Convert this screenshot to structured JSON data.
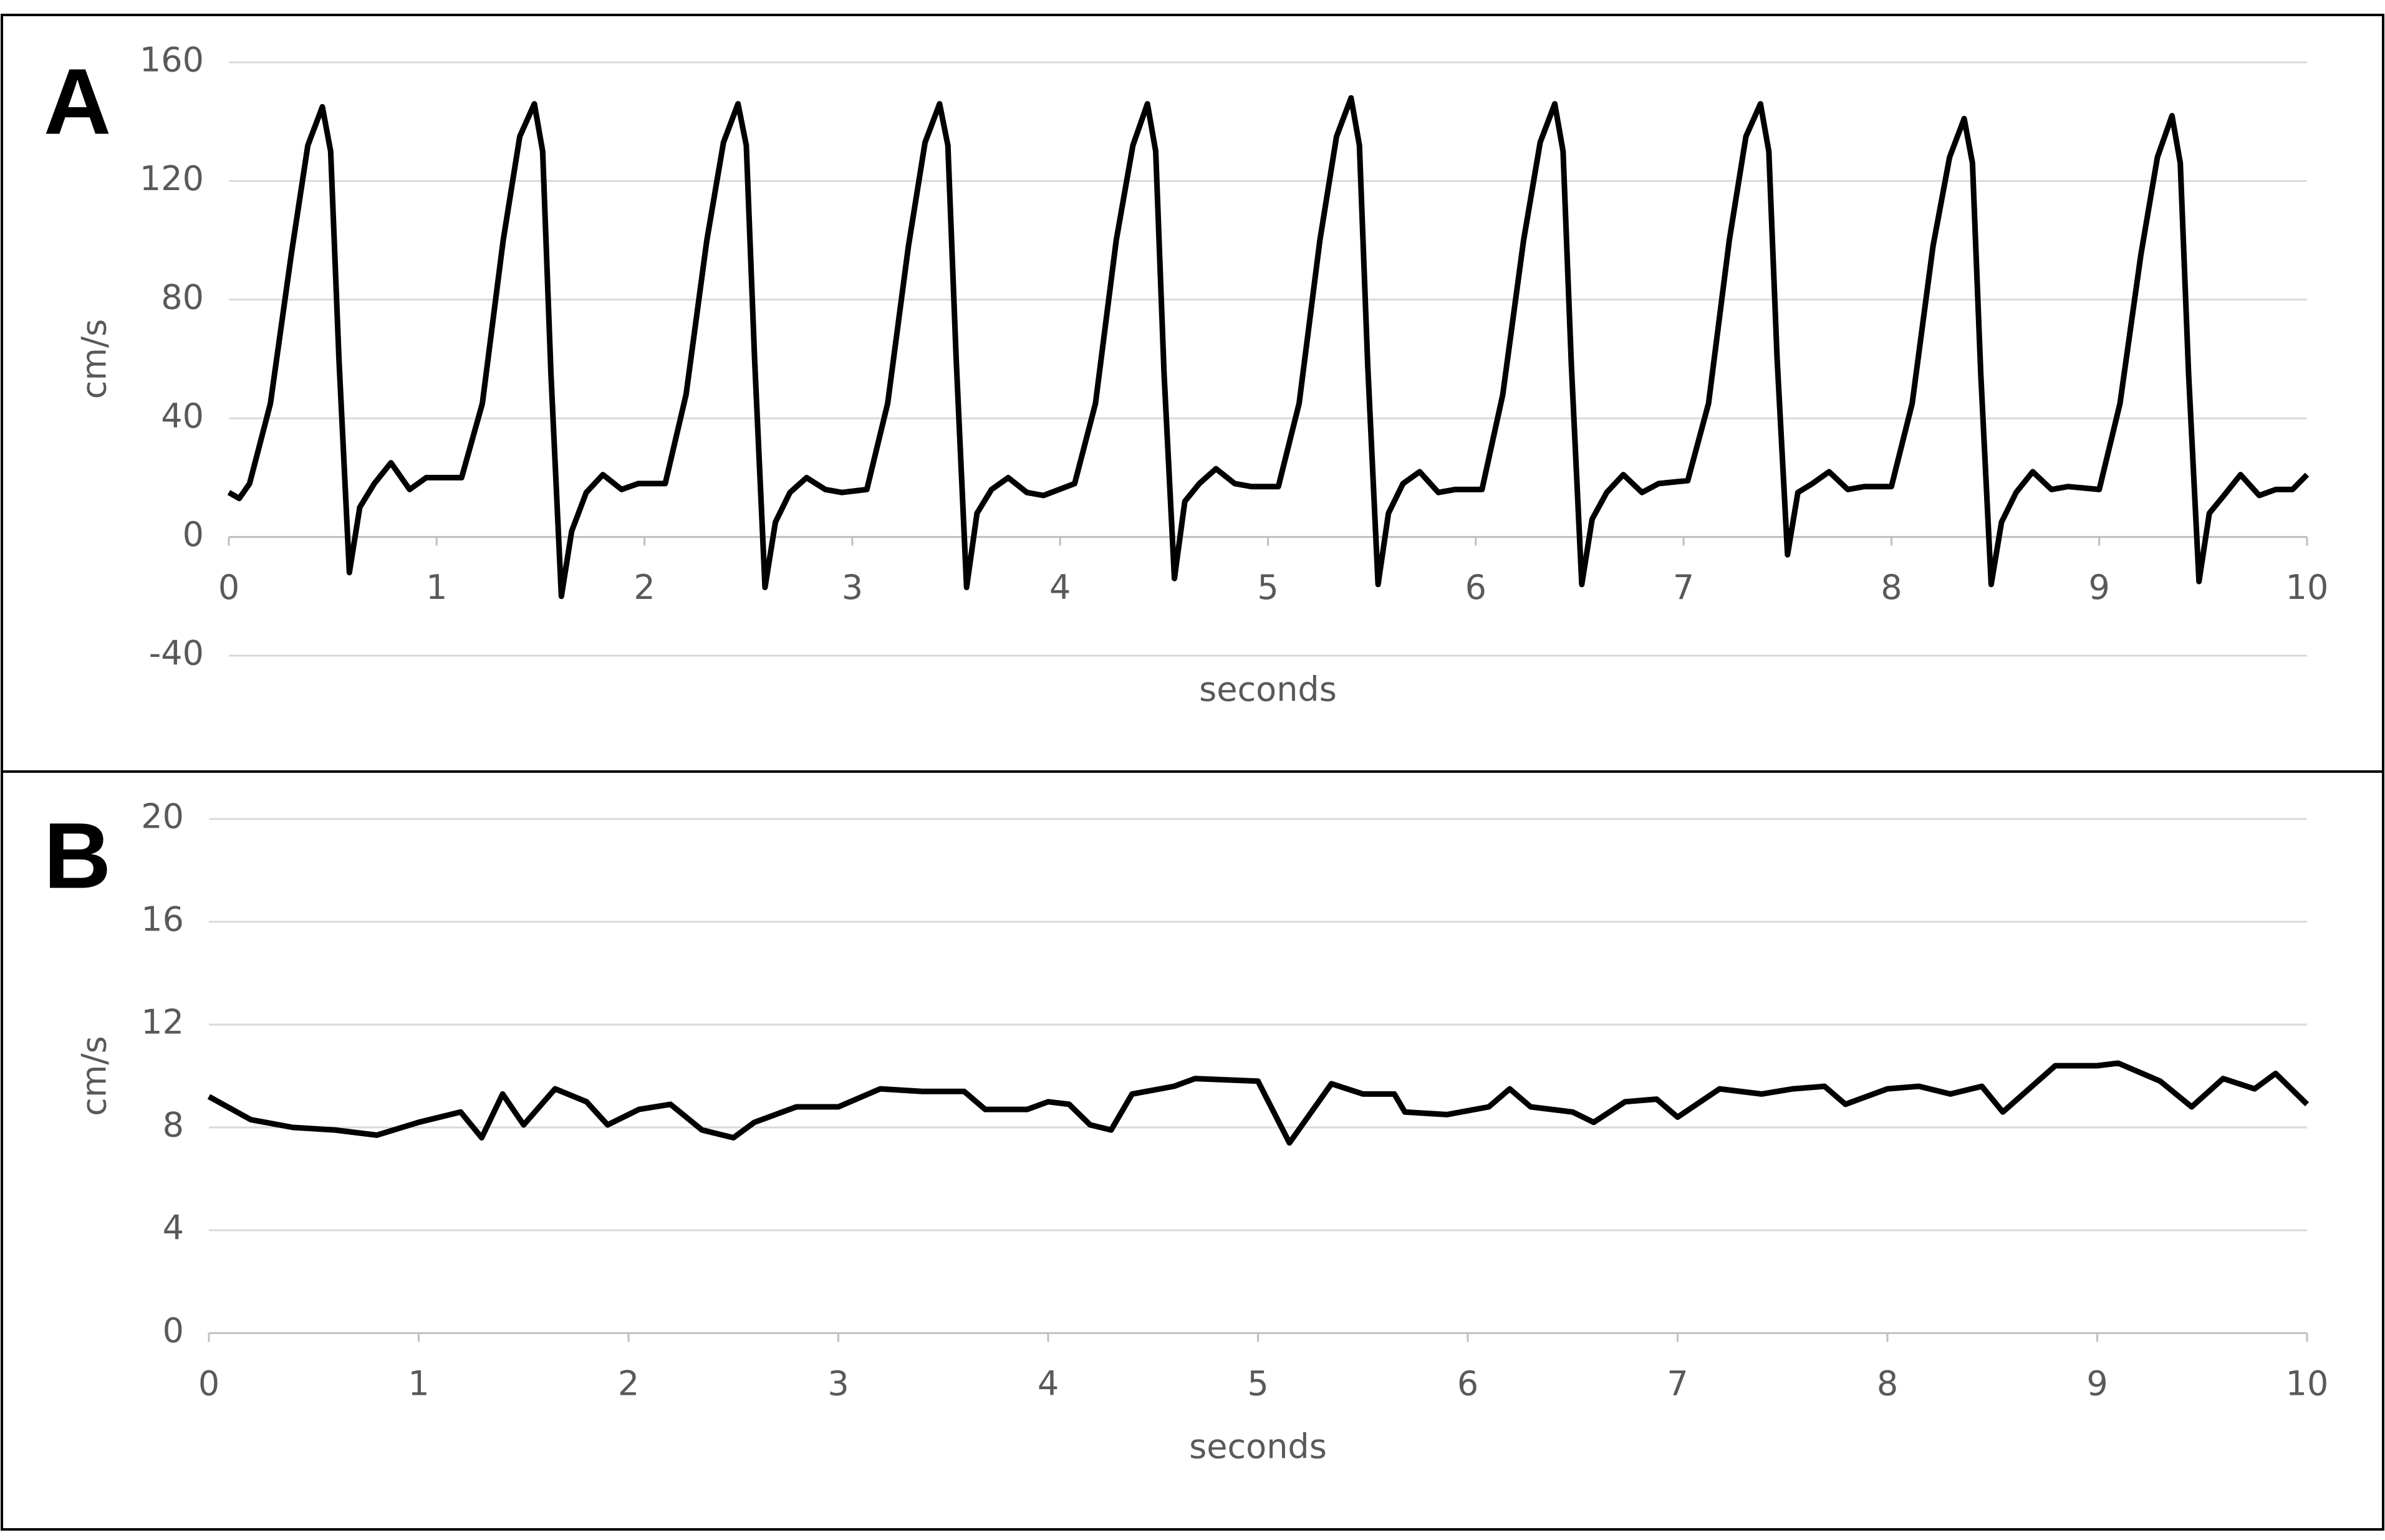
{
  "chart_data": [
    {
      "type": "line",
      "panel_label": "A",
      "y_label": "cm/s",
      "x_label": "seconds",
      "xlim": [
        0,
        10
      ],
      "ylim": [
        -40,
        160
      ],
      "xticks": [
        0,
        1,
        2,
        3,
        4,
        5,
        6,
        7,
        8,
        9,
        10
      ],
      "yticks": [
        -40,
        0,
        40,
        80,
        120,
        160
      ],
      "grid": true,
      "series": [
        {
          "color": "#000000",
          "x": [
            0,
            0.05,
            0.1,
            0.2,
            0.3,
            0.38,
            0.45,
            0.49,
            0.53,
            0.58,
            0.63,
            0.7,
            0.78,
            0.87,
            0.95,
            1.12,
            1.22,
            1.32,
            1.4,
            1.47,
            1.51,
            1.55,
            1.6,
            1.65,
            1.72,
            1.8,
            1.89,
            1.97,
            2.1,
            2.2,
            2.3,
            2.38,
            2.45,
            2.49,
            2.53,
            2.58,
            2.63,
            2.7,
            2.78,
            2.87,
            2.95,
            3.07,
            3.17,
            3.27,
            3.35,
            3.42,
            3.46,
            3.5,
            3.55,
            3.6,
            3.67,
            3.75,
            3.84,
            3.92,
            4.07,
            4.17,
            4.27,
            4.35,
            4.42,
            4.46,
            4.5,
            4.55,
            4.6,
            4.67,
            4.75,
            4.84,
            4.92,
            5.05,
            5.15,
            5.25,
            5.33,
            5.4,
            5.44,
            5.48,
            5.53,
            5.58,
            5.65,
            5.73,
            5.82,
            5.9,
            6.03,
            6.13,
            6.23,
            6.31,
            6.38,
            6.42,
            6.46,
            6.51,
            6.56,
            6.63,
            6.71,
            6.8,
            6.88,
            7.02,
            7.12,
            7.22,
            7.3,
            7.37,
            7.41,
            7.45,
            7.5,
            7.55,
            7.62,
            7.7,
            7.79,
            7.87,
            8.0,
            8.1,
            8.2,
            8.28,
            8.35,
            8.39,
            8.43,
            8.48,
            8.53,
            8.6,
            8.68,
            8.77,
            8.85,
            9.0,
            9.1,
            9.2,
            9.28,
            9.35,
            9.39,
            9.43,
            9.48,
            9.53,
            9.6,
            9.68,
            9.77,
            9.85,
            9.93,
            10
          ],
          "values": [
            15,
            13,
            18,
            45,
            95,
            132,
            145,
            130,
            60,
            -12,
            10,
            18,
            25,
            16,
            20,
            20,
            45,
            100,
            135,
            146,
            130,
            55,
            -20,
            2,
            15,
            21,
            16,
            18,
            18,
            48,
            100,
            133,
            146,
            132,
            60,
            -17,
            5,
            15,
            20,
            16,
            15,
            16,
            45,
            98,
            133,
            146,
            132,
            60,
            -17,
            8,
            16,
            20,
            15,
            14,
            18,
            45,
            100,
            132,
            146,
            130,
            55,
            -14,
            12,
            18,
            23,
            18,
            17,
            17,
            45,
            100,
            135,
            148,
            132,
            58,
            -16,
            8,
            18,
            22,
            15,
            16,
            16,
            48,
            100,
            133,
            146,
            130,
            58,
            -16,
            6,
            15,
            21,
            15,
            18,
            19,
            45,
            100,
            135,
            146,
            130,
            60,
            -6,
            15,
            18,
            22,
            16,
            17,
            17,
            45,
            98,
            128,
            141,
            126,
            55,
            -16,
            5,
            15,
            22,
            16,
            17,
            16,
            45,
            95,
            128,
            142,
            126,
            55,
            -15,
            8,
            14,
            21,
            14,
            16,
            16,
            21
          ]
        }
      ]
    },
    {
      "type": "line",
      "panel_label": "B",
      "y_label": "cm/s",
      "x_label": "seconds",
      "xlim": [
        0,
        10
      ],
      "ylim": [
        0,
        20
      ],
      "xticks": [
        0,
        1,
        2,
        3,
        4,
        5,
        6,
        7,
        8,
        9,
        10
      ],
      "yticks": [
        0,
        4,
        8,
        12,
        16,
        20
      ],
      "grid": true,
      "series": [
        {
          "color": "#000000",
          "x": [
            0,
            0.2,
            0.4,
            0.6,
            0.8,
            1.0,
            1.2,
            1.3,
            1.4,
            1.5,
            1.65,
            1.8,
            1.9,
            2.05,
            2.2,
            2.35,
            2.5,
            2.6,
            2.8,
            3.0,
            3.2,
            3.4,
            3.6,
            3.7,
            3.9,
            4.0,
            4.1,
            4.2,
            4.3,
            4.4,
            4.6,
            4.7,
            5.0,
            5.15,
            5.35,
            5.5,
            5.65,
            5.7,
            5.9,
            6.1,
            6.2,
            6.3,
            6.5,
            6.6,
            6.75,
            6.9,
            7.0,
            7.2,
            7.4,
            7.55,
            7.7,
            7.8,
            8.0,
            8.15,
            8.3,
            8.45,
            8.55,
            8.8,
            9.0,
            9.1,
            9.3,
            9.45,
            9.6,
            9.75,
            9.85,
            10.0
          ],
          "values": [
            9.2,
            8.3,
            8.0,
            7.9,
            7.7,
            8.2,
            8.6,
            7.6,
            9.3,
            8.1,
            9.5,
            9.0,
            8.1,
            8.7,
            8.9,
            7.9,
            7.6,
            8.2,
            8.8,
            8.8,
            9.5,
            9.4,
            9.4,
            8.7,
            8.7,
            9.0,
            8.9,
            8.1,
            7.9,
            9.3,
            9.6,
            9.9,
            9.8,
            7.4,
            9.7,
            9.3,
            9.3,
            8.6,
            8.5,
            8.8,
            9.5,
            8.8,
            8.6,
            8.2,
            9.0,
            9.1,
            8.4,
            9.5,
            9.3,
            9.5,
            9.6,
            8.9,
            9.5,
            9.6,
            9.3,
            9.6,
            8.6,
            10.4,
            10.4,
            10.5,
            9.8,
            8.8,
            9.9,
            9.5,
            10.1,
            8.9
          ]
        }
      ]
    }
  ]
}
